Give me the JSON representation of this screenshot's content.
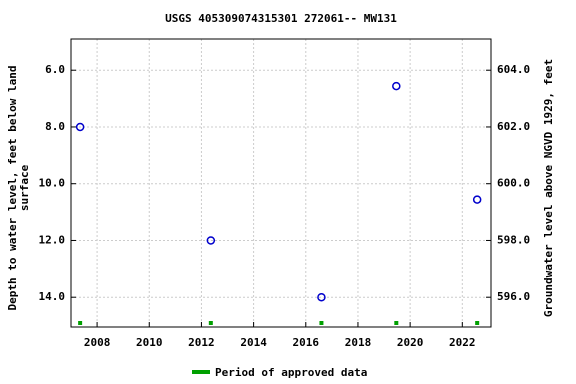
{
  "chart_data": {
    "type": "scatter",
    "title": "USGS 405309074315301 272061-- MW131",
    "ylabel": [
      "Depth to water level, feet below land",
      "surface"
    ],
    "y2label": "Groundwater level above NGVD 1929, feet",
    "x": [
      2007.35,
      2012.36,
      2016.6,
      2019.47,
      2022.57
    ],
    "values": [
      8.0,
      12.0,
      14.0,
      6.56,
      10.56
    ],
    "color": "#0000cc",
    "approved": {
      "name": "Period of approved data",
      "color": "#00a000",
      "x": [
        2007.35,
        2012.36,
        2016.6,
        2019.47,
        2022.57
      ]
    },
    "xlim": [
      2007.0,
      2023.1
    ],
    "xticks": [
      2008,
      2010,
      2012,
      2014,
      2016,
      2018,
      2020,
      2022
    ],
    "ylim": [
      15.05,
      4.9
    ],
    "yticks": [
      {
        "value": 6,
        "label": "6.0"
      },
      {
        "value": 8,
        "label": "8.0"
      },
      {
        "value": 10,
        "label": "10.0"
      },
      {
        "value": 12,
        "label": "12.0"
      },
      {
        "value": 14,
        "label": "14.0"
      }
    ],
    "y2lim": [
      594.95,
      605.1
    ],
    "y2ticks": [
      {
        "value": 596,
        "label": "596.0"
      },
      {
        "value": 598,
        "label": "598.0"
      },
      {
        "value": 600,
        "label": "600.0"
      },
      {
        "value": 602,
        "label": "602.0"
      },
      {
        "value": 604,
        "label": "604.0"
      }
    ],
    "grid": true
  }
}
